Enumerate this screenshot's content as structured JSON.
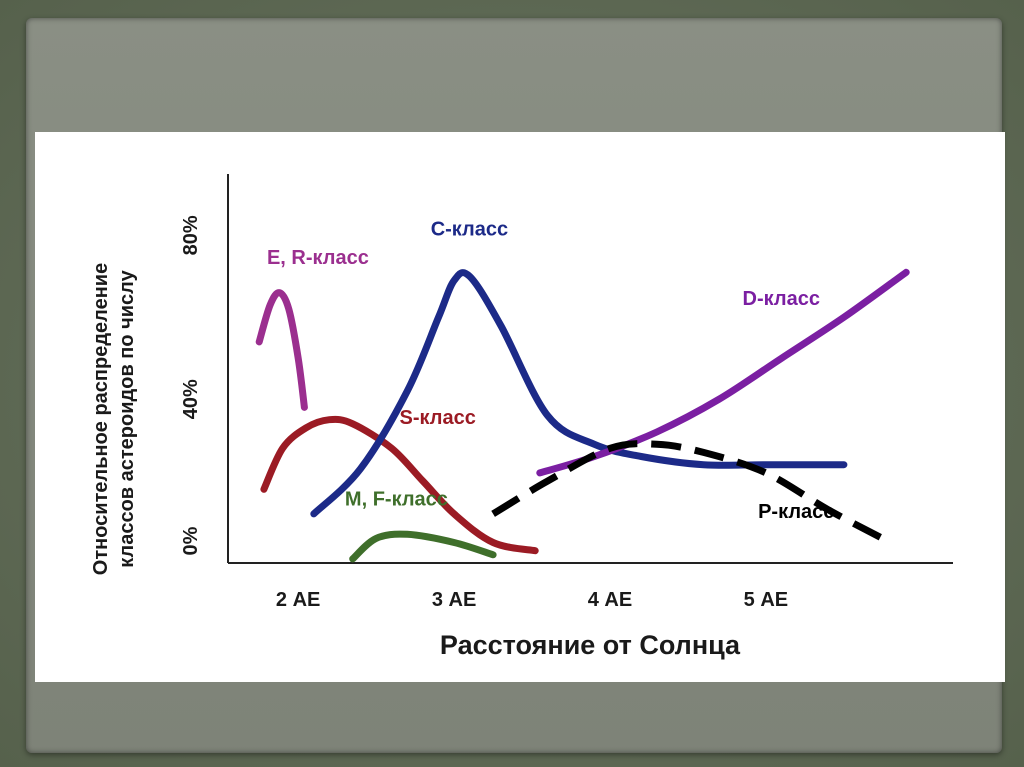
{
  "chart_data": {
    "type": "line",
    "title": "",
    "xlabel": "Расстояние от Солнца",
    "ylabel": "Относительное распределение классов астероидов по числу",
    "x_ticks": [
      {
        "value": 2,
        "label": "2 АЕ"
      },
      {
        "value": 3,
        "label": "3 АЕ"
      },
      {
        "value": 4,
        "label": "4 АЕ"
      },
      {
        "value": 5,
        "label": "5 АЕ"
      }
    ],
    "y_ticks": [
      {
        "value": 0,
        "label": "0%"
      },
      {
        "value": 40,
        "label": "40%"
      },
      {
        "value": 80,
        "label": "80%"
      }
    ],
    "xlim": [
      1.55,
      6.2
    ],
    "ylim": [
      0,
      95
    ],
    "grid": false,
    "series": [
      {
        "name": "E, R-класс",
        "color": "#9b2f8f",
        "dash": false,
        "x": [
          1.75,
          1.82,
          1.88,
          1.94,
          2.0,
          2.04
        ],
        "y": [
          54,
          63,
          66,
          62,
          50,
          38
        ]
      },
      {
        "name": "S-класс",
        "color": "#9b1b24",
        "dash": false,
        "x": [
          1.78,
          1.9,
          2.05,
          2.2,
          2.35,
          2.6,
          2.8,
          3.0,
          3.25,
          3.52
        ],
        "y": [
          18,
          28,
          33,
          35,
          34,
          28,
          20,
          12,
          5,
          3
        ]
      },
      {
        "name": "C-класс",
        "color": "#1c2a88",
        "dash": false,
        "x": [
          2.1,
          2.4,
          2.7,
          2.9,
          3.0,
          3.1,
          3.3,
          3.6,
          3.9,
          4.2,
          4.6,
          5.0,
          5.5
        ],
        "y": [
          12,
          23,
          42,
          60,
          69,
          70,
          58,
          36,
          29,
          26,
          24,
          24,
          24
        ]
      },
      {
        "name": "M, F-класс",
        "color": "#3f6f2b",
        "dash": false,
        "x": [
          2.35,
          2.5,
          2.7,
          3.0,
          3.25
        ],
        "y": [
          1,
          6,
          7,
          5,
          2
        ]
      },
      {
        "name": "D-класс",
        "color": "#7b1fa2",
        "dash": false,
        "x": [
          3.55,
          3.9,
          4.3,
          4.7,
          5.1,
          5.5,
          5.9
        ],
        "y": [
          22,
          26,
          32,
          40,
          50,
          60,
          71
        ]
      },
      {
        "name": "P-класс",
        "color": "#000000",
        "dash": true,
        "x": [
          3.25,
          3.6,
          4.0,
          4.3,
          4.6,
          5.0,
          5.4,
          5.8
        ],
        "y": [
          12,
          20,
          28,
          29,
          27,
          22,
          13,
          5
        ]
      }
    ],
    "annotations": [
      {
        "text": "E, R-класс",
        "x": 1.8,
        "y": 73,
        "color": "#9b2f8f"
      },
      {
        "text": "C-класс",
        "x": 2.85,
        "y": 80,
        "color": "#1c2a88"
      },
      {
        "text": "D-класс",
        "x": 4.85,
        "y": 63,
        "color": "#7b1fa2"
      },
      {
        "text": "S-класс",
        "x": 2.65,
        "y": 34,
        "color": "#9b1b24"
      },
      {
        "text": "M, F-класс",
        "x": 2.3,
        "y": 14,
        "color": "#3f6f2b"
      },
      {
        "text": "P-класс",
        "x": 4.95,
        "y": 11,
        "color": "#000000"
      }
    ]
  }
}
